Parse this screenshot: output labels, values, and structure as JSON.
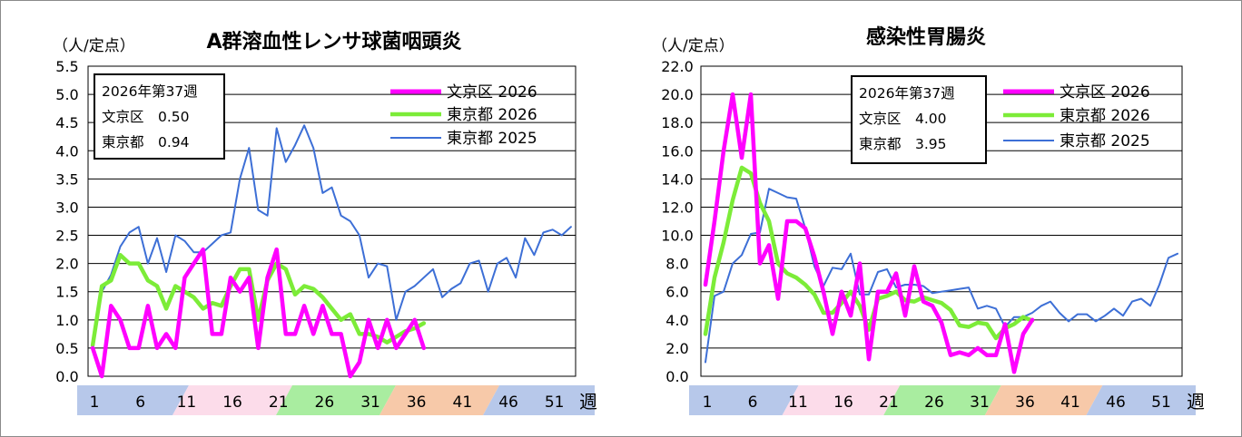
{
  "charts": [
    {
      "chart_data": {
        "type": "line",
        "title": "A群溶血性レンサ球菌咽頭炎",
        "ylabel": "（人/定点）",
        "xlabel": "週",
        "ylim": [
          0,
          5.5
        ],
        "yticks": [
          "0.0",
          "0.5",
          "1.0",
          "1.5",
          "2.0",
          "2.5",
          "3.0",
          "3.5",
          "4.0",
          "4.5",
          "5.0",
          "5.5"
        ],
        "xtick_labels": [
          "1",
          "6",
          "11",
          "16",
          "21",
          "26",
          "31",
          "36",
          "41",
          "46",
          "51"
        ],
        "legend_position": "top-right",
        "info_box": {
          "line1": "2026年第37週",
          "line2": "文京区　0.50",
          "line3": "東京都　0.94"
        },
        "series": [
          {
            "name": "文京区 2026",
            "color": "#ff00ff",
            "values": [
              0.5,
              0,
              1.25,
              1,
              0.5,
              0.5,
              1.25,
              0.5,
              0.75,
              0.5,
              1.75,
              2,
              2.25,
              0.75,
              0.75,
              1.75,
              1.5,
              1.75,
              0.5,
              1.75,
              2.25,
              0.75,
              0.75,
              1.25,
              0.75,
              1.25,
              0.75,
              0.75,
              0,
              0.25,
              1,
              0.5,
              1,
              0.5,
              0.75,
              1,
              0.5
            ]
          },
          {
            "name": "東京都 2026",
            "color": "#7cec38",
            "values": [
              0.55,
              1.6,
              1.7,
              2.15,
              2,
              2,
              1.7,
              1.6,
              1.2,
              1.6,
              1.5,
              1.4,
              1.2,
              1.3,
              1.25,
              1.6,
              1.9,
              1.9,
              1,
              1.7,
              2,
              1.9,
              1.45,
              1.6,
              1.55,
              1.4,
              1.2,
              1,
              1.1,
              0.75,
              0.75,
              0.7,
              0.6,
              0.7,
              0.8,
              0.85,
              0.94
            ]
          },
          {
            "name": "東京都 2025",
            "color": "#3d6fd6",
            "values": [
              0.5,
              1.5,
              1.8,
              2.3,
              2.55,
              2.65,
              2,
              2.45,
              1.85,
              2.5,
              2.4,
              2.2,
              2.2,
              2.35,
              2.5,
              2.55,
              3.5,
              4.05,
              2.95,
              2.85,
              4.4,
              3.8,
              4.1,
              4.45,
              4.05,
              3.25,
              3.35,
              2.85,
              2.75,
              2.5,
              1.75,
              2,
              1.95,
              1,
              1.5,
              1.6,
              1.75,
              1.9,
              1.4,
              1.55,
              1.65,
              2,
              2.05,
              1.5,
              2,
              2.1,
              1.75,
              2.45,
              2.15,
              2.55,
              2.6,
              2.5,
              2.65
            ]
          }
        ]
      }
    },
    {
      "chart_data": {
        "type": "line",
        "title": "感染性胃腸炎",
        "ylabel": "（人/定点）",
        "xlabel": "週",
        "ylim": [
          0,
          22
        ],
        "yticks": [
          "0.0",
          "2.0",
          "4.0",
          "6.0",
          "8.0",
          "10.0",
          "12.0",
          "14.0",
          "16.0",
          "18.0",
          "20.0",
          "22.0"
        ],
        "xtick_labels": [
          "1",
          "6",
          "11",
          "16",
          "21",
          "26",
          "31",
          "36",
          "41",
          "46",
          "51"
        ],
        "legend_position": "top-right",
        "info_box": {
          "line1": "2026年第37週",
          "line2": "文京区　4.00",
          "line3": "東京都　3.95"
        },
        "series": [
          {
            "name": "文京区 2026",
            "color": "#ff00ff",
            "values": [
              6.5,
              11,
              16,
              20,
              15.5,
              20,
              8,
              9.3,
              5.5,
              11,
              11,
              10.5,
              8.5,
              6,
              3,
              6,
              4.3,
              8,
              1.2,
              6,
              6,
              7.3,
              4.3,
              7.8,
              5.3,
              5,
              3.8,
              1.5,
              1.7,
              1.5,
              2,
              1.5,
              1.5,
              3.7,
              0.3,
              3,
              4
            ]
          },
          {
            "name": "東京都 2026",
            "color": "#7cec38",
            "values": [
              3,
              7,
              9.5,
              12.5,
              14.8,
              14.4,
              12.3,
              11,
              8,
              7.3,
              7,
              6.5,
              5.8,
              4.5,
              4.5,
              5.2,
              6,
              5,
              3.3,
              5.5,
              5.7,
              6,
              5.4,
              5.3,
              5.6,
              5.4,
              5.2,
              4.7,
              3.6,
              3.5,
              3.8,
              3.7,
              2.7,
              3.4,
              3.7,
              4.2,
              3.95
            ]
          },
          {
            "name": "東京都 2025",
            "color": "#3d6fd6",
            "values": [
              1,
              5.7,
              6,
              8,
              8.6,
              10.1,
              10.2,
              13.3,
              13,
              12.7,
              12.6,
              10.5,
              7.8,
              6.4,
              7.7,
              7.6,
              8.7,
              5.8,
              5.8,
              7.4,
              7.6,
              6.3,
              6.5,
              6.5,
              6.4,
              5.9,
              6,
              6.1,
              6.2,
              6.3,
              4.8,
              5,
              4.8,
              3.5,
              4.2,
              4.2,
              4.5,
              5,
              5.3,
              4.5,
              3.9,
              4.4,
              4.4,
              3.9,
              4.3,
              4.8,
              4.3,
              5.3,
              5.5,
              5,
              6.5,
              8.4,
              8.7
            ]
          }
        ]
      }
    }
  ]
}
